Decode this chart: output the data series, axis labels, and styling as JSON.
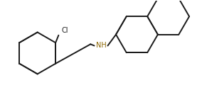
{
  "bg_color": "#ffffff",
  "bond_color": "#1a1a1a",
  "nh_color": "#8B6500",
  "cl_color": "#1a1a1a",
  "line_width": 1.4,
  "figsize": [
    2.84,
    1.51
  ],
  "dpi": 100
}
